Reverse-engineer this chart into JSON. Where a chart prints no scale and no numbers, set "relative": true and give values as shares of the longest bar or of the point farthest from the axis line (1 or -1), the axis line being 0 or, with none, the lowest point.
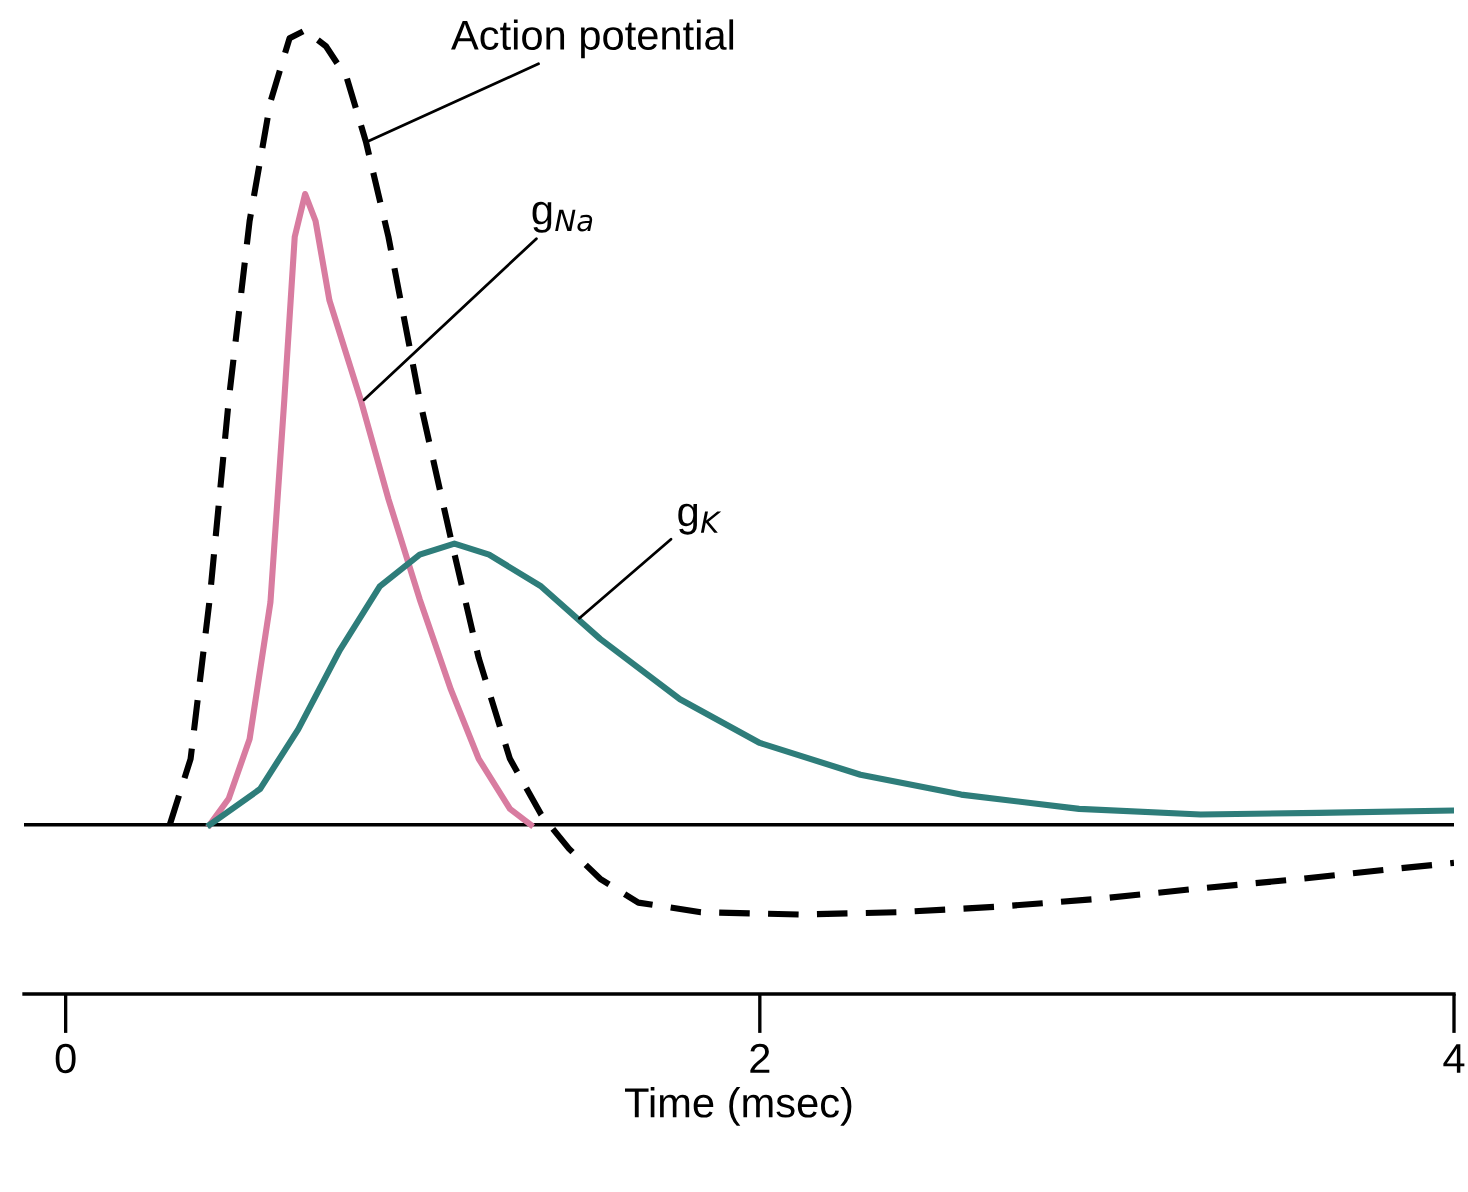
{
  "chart_data": {
    "type": "line",
    "relative": true,
    "xlabel": "Time (msec)",
    "xlim": [
      -0.12,
      4.0
    ],
    "xticks": [
      0,
      2,
      4
    ],
    "tick_labels": "x",
    "grid": false,
    "legend": false,
    "series": [
      {
        "color": "#000000",
        "line_style": "dashed",
        "x": [
          0.3,
          0.36,
          0.415,
          0.47,
          0.53,
          0.59,
          0.645,
          0.69,
          0.75,
          0.81,
          0.865,
          0.93,
          1.02,
          1.11,
          1.19,
          1.28,
          1.37,
          1.45,
          1.54,
          1.65,
          1.83,
          2.12,
          2.4,
          2.69,
          2.98,
          3.27,
          3.56,
          3.84,
          4.0
        ],
        "values": [
          0,
          0.083,
          0.284,
          0.535,
          0.76,
          0.91,
          0.99,
          1.0,
          0.98,
          0.94,
          0.86,
          0.74,
          0.535,
          0.36,
          0.21,
          0.083,
          0.013,
          -0.03,
          -0.068,
          -0.098,
          -0.11,
          -0.113,
          -0.11,
          -0.103,
          -0.093,
          -0.08,
          -0.068,
          -0.055,
          -0.048
        ]
      },
      {
        "color": "#d87ca0",
        "line_style": "solid",
        "x": [
          0.415,
          0.47,
          0.53,
          0.59,
          0.63,
          0.66,
          0.69,
          0.72,
          0.76,
          0.85,
          0.93,
          1.02,
          1.11,
          1.19,
          1.28,
          1.34
        ],
        "values": [
          0,
          0.033,
          0.108,
          0.28,
          0.535,
          0.74,
          0.794,
          0.76,
          0.66,
          0.535,
          0.41,
          0.284,
          0.17,
          0.083,
          0.02,
          0
        ]
      },
      {
        "color": "#2e7d7a",
        "line_style": "solid",
        "x": [
          0.415,
          0.56,
          0.67,
          0.79,
          0.905,
          1.02,
          1.12,
          1.22,
          1.37,
          1.54,
          1.77,
          2.0,
          2.29,
          2.58,
          2.92,
          3.27,
          3.61,
          4.0
        ],
        "values": [
          0,
          0.045,
          0.12,
          0.22,
          0.3,
          0.34,
          0.354,
          0.34,
          0.3,
          0.234,
          0.158,
          0.103,
          0.063,
          0.038,
          0.02,
          0.013,
          0.015,
          0.018
        ]
      }
    ],
    "annotations": [
      {
        "text": "Action potential",
        "x": 0.87,
        "y": 0.86
      },
      {
        "text": "g$_{Na}$",
        "x": 0.86,
        "y": 0.535
      },
      {
        "text": "g$_{K}$",
        "x": 1.48,
        "y": 0.26
      }
    ]
  }
}
